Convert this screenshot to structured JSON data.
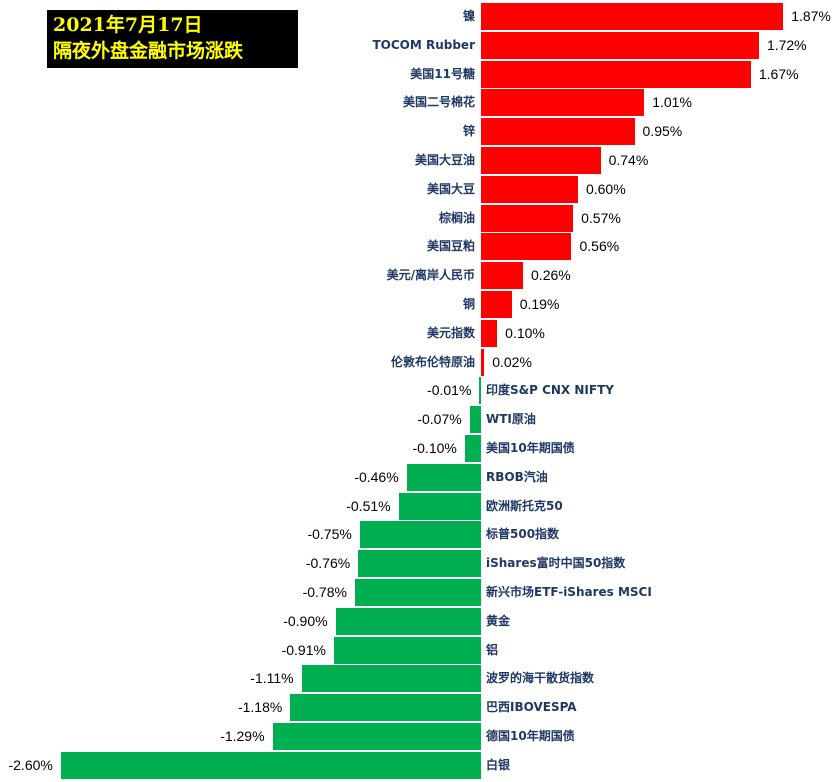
{
  "title": {
    "line1": "2021年7月17日",
    "line2": "隔夜外盘金融市场涨跌"
  },
  "colors": {
    "positive": "#ff0000",
    "negative": "#00b050",
    "label": "#1f3864",
    "title_bg": "#000000",
    "title_text": "#ffff00"
  },
  "chart_data": {
    "type": "bar",
    "orientation": "horizontal",
    "title": "2021年7月17日 隔夜外盘金融市场涨跌",
    "xlabel": "",
    "ylabel": "",
    "unit": "%",
    "grid": false,
    "legend": null,
    "categories": [
      "镍",
      "TOCOM Rubber",
      "美国11号糖",
      "美国二号棉花",
      "锌",
      "美国大豆油",
      "美国大豆",
      "棕榈油",
      "美国豆粕",
      "美元/离岸人民币",
      "铜",
      "美元指数",
      "伦敦布伦特原油",
      "印度S&P CNX NIFTY",
      "WTI原油",
      "美国10年期国债",
      "RBOB汽油",
      "欧洲斯托克50",
      "标普500指数",
      "iShares富时中国50指数",
      "新兴市场ETF-iShares MSCI",
      "黄金",
      "铝",
      "波罗的海干散货指数",
      "巴西IBOVESPA",
      "德国10年期国债",
      "白银"
    ],
    "values": [
      1.87,
      1.72,
      1.67,
      1.01,
      0.95,
      0.74,
      0.6,
      0.57,
      0.56,
      0.26,
      0.19,
      0.1,
      0.02,
      -0.01,
      -0.07,
      -0.1,
      -0.46,
      -0.51,
      -0.75,
      -0.76,
      -0.78,
      -0.9,
      -0.91,
      -1.11,
      -1.18,
      -1.29,
      -2.6
    ],
    "labels": [
      "1.87%",
      "1.72%",
      "1.67%",
      "1.01%",
      "0.95%",
      "0.74%",
      "0.60%",
      "0.57%",
      "0.56%",
      "0.26%",
      "0.19%",
      "0.10%",
      "0.02%",
      "-0.01%",
      "-0.07%",
      "-0.10%",
      "-0.46%",
      "-0.51%",
      "-0.75%",
      "-0.76%",
      "-0.78%",
      "-0.90%",
      "-0.91%",
      "-1.11%",
      "-1.18%",
      "-1.29%",
      "-2.60%"
    ],
    "xlim": [
      -2.6,
      1.87
    ]
  }
}
